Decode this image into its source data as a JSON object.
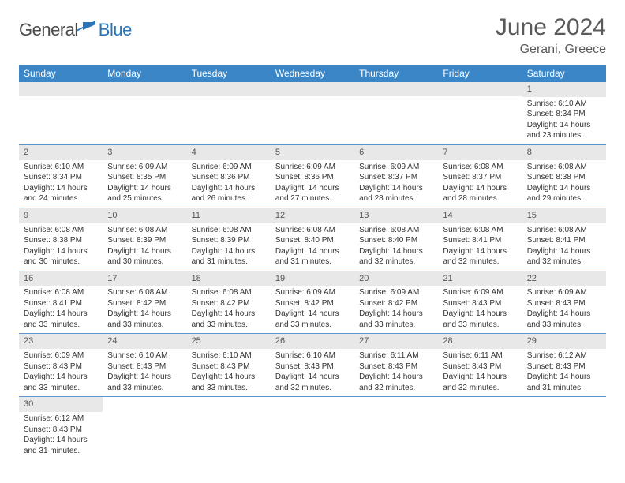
{
  "logo": {
    "general": "General",
    "blue": "Blue"
  },
  "title": "June 2024",
  "location": "Gerani, Greece",
  "colors": {
    "header_bg": "#3b86c6",
    "header_text": "#ffffff",
    "daynum_bg": "#e8e8e8",
    "row_border": "#5a95cb",
    "logo_gray": "#4a4a4a",
    "logo_blue": "#2a74b8",
    "text": "#333333"
  },
  "day_headers": [
    "Sunday",
    "Monday",
    "Tuesday",
    "Wednesday",
    "Thursday",
    "Friday",
    "Saturday"
  ],
  "weeks": [
    [
      null,
      null,
      null,
      null,
      null,
      null,
      {
        "n": "1",
        "sr": "Sunrise: 6:10 AM",
        "ss": "Sunset: 8:34 PM",
        "d1": "Daylight: 14 hours",
        "d2": "and 23 minutes."
      }
    ],
    [
      {
        "n": "2",
        "sr": "Sunrise: 6:10 AM",
        "ss": "Sunset: 8:34 PM",
        "d1": "Daylight: 14 hours",
        "d2": "and 24 minutes."
      },
      {
        "n": "3",
        "sr": "Sunrise: 6:09 AM",
        "ss": "Sunset: 8:35 PM",
        "d1": "Daylight: 14 hours",
        "d2": "and 25 minutes."
      },
      {
        "n": "4",
        "sr": "Sunrise: 6:09 AM",
        "ss": "Sunset: 8:36 PM",
        "d1": "Daylight: 14 hours",
        "d2": "and 26 minutes."
      },
      {
        "n": "5",
        "sr": "Sunrise: 6:09 AM",
        "ss": "Sunset: 8:36 PM",
        "d1": "Daylight: 14 hours",
        "d2": "and 27 minutes."
      },
      {
        "n": "6",
        "sr": "Sunrise: 6:09 AM",
        "ss": "Sunset: 8:37 PM",
        "d1": "Daylight: 14 hours",
        "d2": "and 28 minutes."
      },
      {
        "n": "7",
        "sr": "Sunrise: 6:08 AM",
        "ss": "Sunset: 8:37 PM",
        "d1": "Daylight: 14 hours",
        "d2": "and 28 minutes."
      },
      {
        "n": "8",
        "sr": "Sunrise: 6:08 AM",
        "ss": "Sunset: 8:38 PM",
        "d1": "Daylight: 14 hours",
        "d2": "and 29 minutes."
      }
    ],
    [
      {
        "n": "9",
        "sr": "Sunrise: 6:08 AM",
        "ss": "Sunset: 8:38 PM",
        "d1": "Daylight: 14 hours",
        "d2": "and 30 minutes."
      },
      {
        "n": "10",
        "sr": "Sunrise: 6:08 AM",
        "ss": "Sunset: 8:39 PM",
        "d1": "Daylight: 14 hours",
        "d2": "and 30 minutes."
      },
      {
        "n": "11",
        "sr": "Sunrise: 6:08 AM",
        "ss": "Sunset: 8:39 PM",
        "d1": "Daylight: 14 hours",
        "d2": "and 31 minutes."
      },
      {
        "n": "12",
        "sr": "Sunrise: 6:08 AM",
        "ss": "Sunset: 8:40 PM",
        "d1": "Daylight: 14 hours",
        "d2": "and 31 minutes."
      },
      {
        "n": "13",
        "sr": "Sunrise: 6:08 AM",
        "ss": "Sunset: 8:40 PM",
        "d1": "Daylight: 14 hours",
        "d2": "and 32 minutes."
      },
      {
        "n": "14",
        "sr": "Sunrise: 6:08 AM",
        "ss": "Sunset: 8:41 PM",
        "d1": "Daylight: 14 hours",
        "d2": "and 32 minutes."
      },
      {
        "n": "15",
        "sr": "Sunrise: 6:08 AM",
        "ss": "Sunset: 8:41 PM",
        "d1": "Daylight: 14 hours",
        "d2": "and 32 minutes."
      }
    ],
    [
      {
        "n": "16",
        "sr": "Sunrise: 6:08 AM",
        "ss": "Sunset: 8:41 PM",
        "d1": "Daylight: 14 hours",
        "d2": "and 33 minutes."
      },
      {
        "n": "17",
        "sr": "Sunrise: 6:08 AM",
        "ss": "Sunset: 8:42 PM",
        "d1": "Daylight: 14 hours",
        "d2": "and 33 minutes."
      },
      {
        "n": "18",
        "sr": "Sunrise: 6:08 AM",
        "ss": "Sunset: 8:42 PM",
        "d1": "Daylight: 14 hours",
        "d2": "and 33 minutes."
      },
      {
        "n": "19",
        "sr": "Sunrise: 6:09 AM",
        "ss": "Sunset: 8:42 PM",
        "d1": "Daylight: 14 hours",
        "d2": "and 33 minutes."
      },
      {
        "n": "20",
        "sr": "Sunrise: 6:09 AM",
        "ss": "Sunset: 8:42 PM",
        "d1": "Daylight: 14 hours",
        "d2": "and 33 minutes."
      },
      {
        "n": "21",
        "sr": "Sunrise: 6:09 AM",
        "ss": "Sunset: 8:43 PM",
        "d1": "Daylight: 14 hours",
        "d2": "and 33 minutes."
      },
      {
        "n": "22",
        "sr": "Sunrise: 6:09 AM",
        "ss": "Sunset: 8:43 PM",
        "d1": "Daylight: 14 hours",
        "d2": "and 33 minutes."
      }
    ],
    [
      {
        "n": "23",
        "sr": "Sunrise: 6:09 AM",
        "ss": "Sunset: 8:43 PM",
        "d1": "Daylight: 14 hours",
        "d2": "and 33 minutes."
      },
      {
        "n": "24",
        "sr": "Sunrise: 6:10 AM",
        "ss": "Sunset: 8:43 PM",
        "d1": "Daylight: 14 hours",
        "d2": "and 33 minutes."
      },
      {
        "n": "25",
        "sr": "Sunrise: 6:10 AM",
        "ss": "Sunset: 8:43 PM",
        "d1": "Daylight: 14 hours",
        "d2": "and 33 minutes."
      },
      {
        "n": "26",
        "sr": "Sunrise: 6:10 AM",
        "ss": "Sunset: 8:43 PM",
        "d1": "Daylight: 14 hours",
        "d2": "and 32 minutes."
      },
      {
        "n": "27",
        "sr": "Sunrise: 6:11 AM",
        "ss": "Sunset: 8:43 PM",
        "d1": "Daylight: 14 hours",
        "d2": "and 32 minutes."
      },
      {
        "n": "28",
        "sr": "Sunrise: 6:11 AM",
        "ss": "Sunset: 8:43 PM",
        "d1": "Daylight: 14 hours",
        "d2": "and 32 minutes."
      },
      {
        "n": "29",
        "sr": "Sunrise: 6:12 AM",
        "ss": "Sunset: 8:43 PM",
        "d1": "Daylight: 14 hours",
        "d2": "and 31 minutes."
      }
    ],
    [
      {
        "n": "30",
        "sr": "Sunrise: 6:12 AM",
        "ss": "Sunset: 8:43 PM",
        "d1": "Daylight: 14 hours",
        "d2": "and 31 minutes."
      },
      null,
      null,
      null,
      null,
      null,
      null
    ]
  ]
}
